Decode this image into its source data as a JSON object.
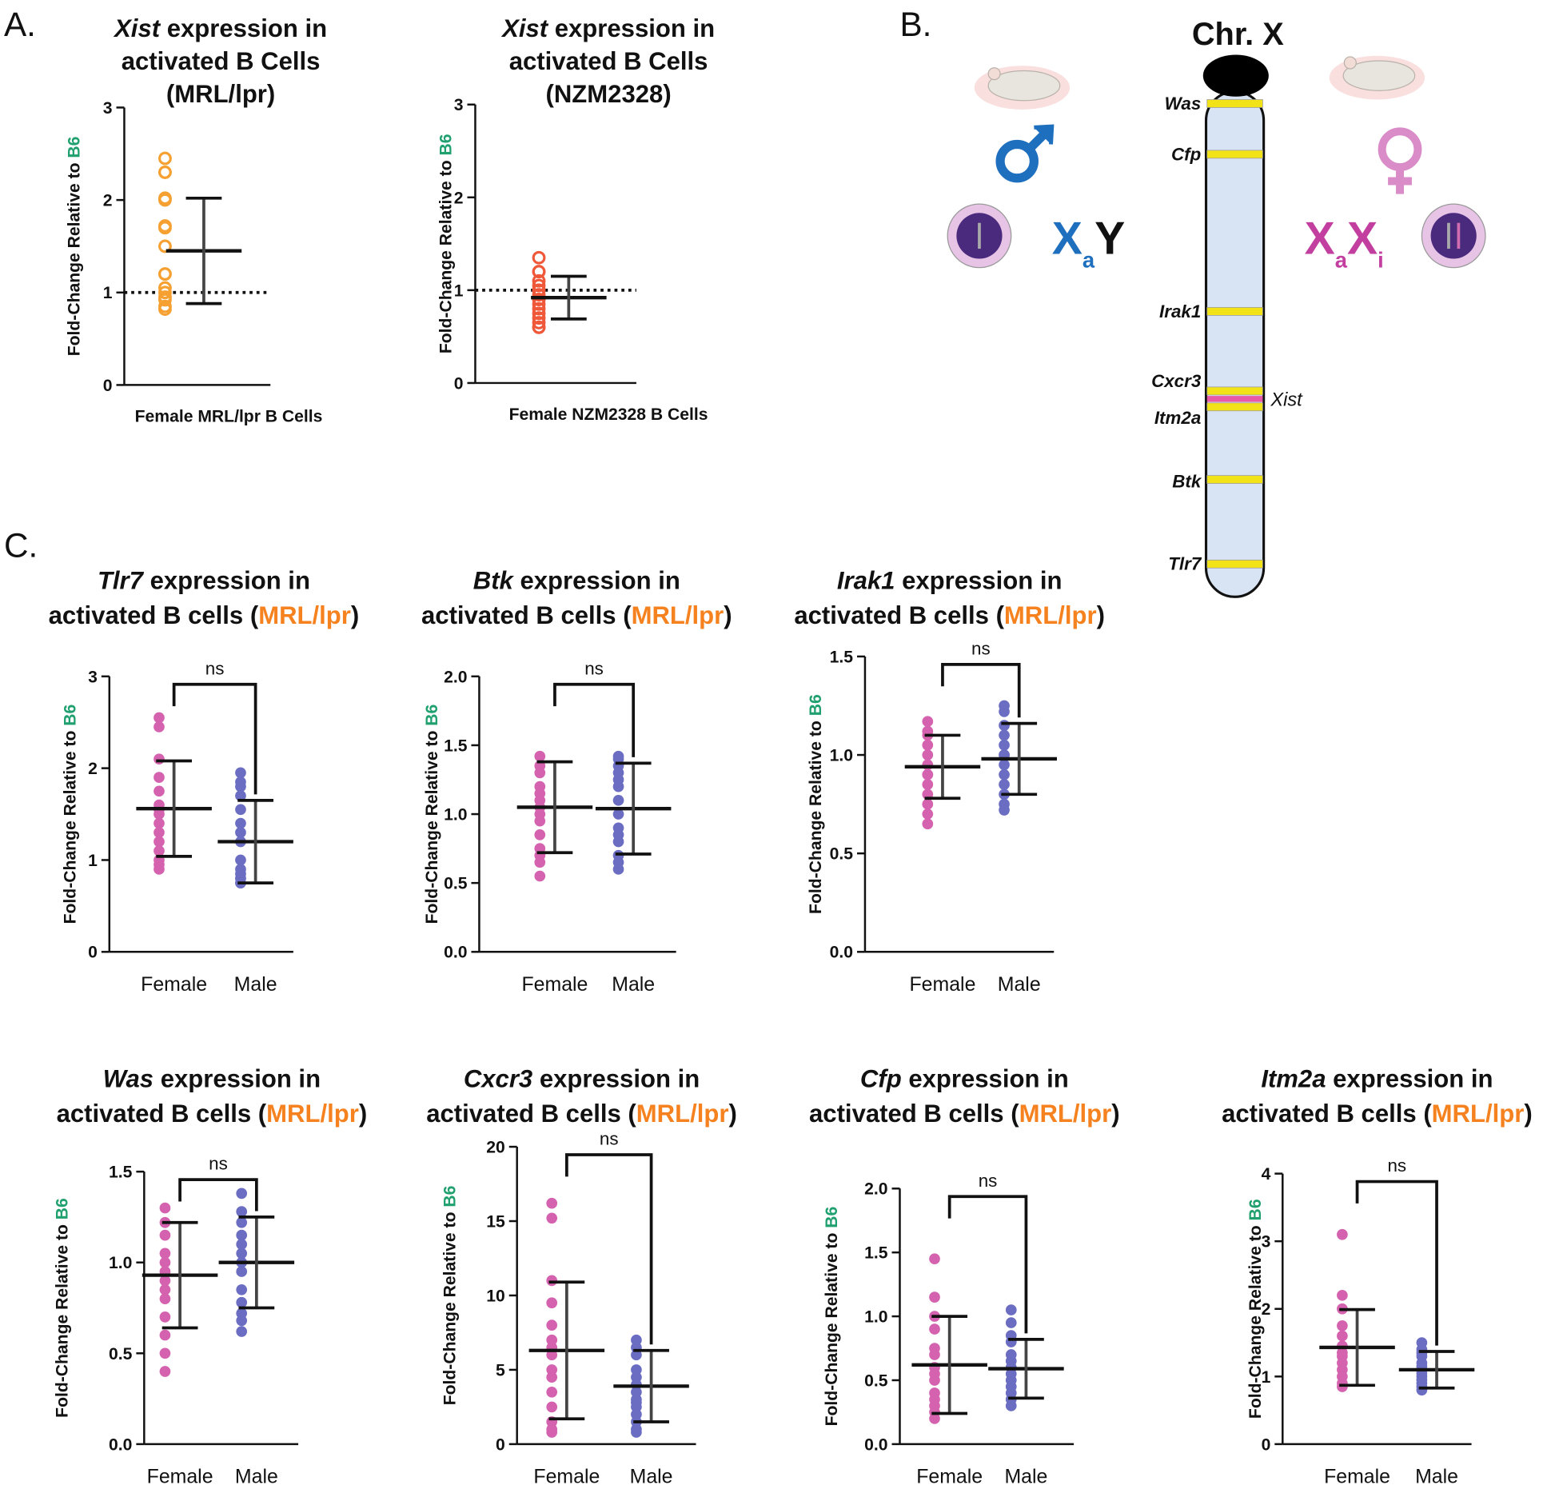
{
  "panels": [
    "A.",
    "B.",
    "C."
  ],
  "diagram": {
    "title": "Chr. X",
    "genes": [
      "Was",
      "Cfp",
      "Irak1",
      "Cxcr3",
      "Itm2a",
      "Btk",
      "Tlr7"
    ],
    "xist": "Xist",
    "male": {
      "x": "X",
      "sub": "a",
      "y": "Y"
    },
    "female": {
      "x1": "X",
      "sub1": "a",
      "x2": "X",
      "sub2": "i"
    }
  },
  "chart_data": [
    {
      "type": "dotplot",
      "title": {
        "gene": "Xist",
        "text": " expression in",
        "line2": "activated B Cells",
        "strain": "(MRL/lpr)"
      },
      "strain_color": "#f5821f",
      "ylabel": {
        "text": "Fold-Change Relative to ",
        "ref": "B6"
      },
      "marker": "open",
      "categories": [
        "Female MRL/lpr B Cells"
      ],
      "colors": [
        "#f5a030"
      ],
      "points": [
        [
          2.45,
          2.3,
          2.3,
          2.02,
          2.0,
          1.7,
          1.72,
          1.5,
          1.2,
          1.2,
          0.95,
          0.92,
          0.82,
          0.85,
          1.0,
          1.05
        ]
      ],
      "mean": [
        1.45
      ],
      "sd": [
        0.57
      ],
      "refline": 1,
      "ylim": [
        0,
        3
      ],
      "yticks": [
        0,
        1,
        2,
        3
      ]
    },
    {
      "type": "dotplot",
      "title": {
        "gene": "Xist",
        "text": " expression in",
        "line2": "activated B Cells",
        "strain": "(NZM2328)"
      },
      "strain_color": "#e8241c",
      "ylabel": {
        "text": "Fold-Change Relative to ",
        "ref": "B6"
      },
      "marker": "open",
      "categories": [
        "Female NZM2328 B Cells"
      ],
      "colors": [
        "#f0583a"
      ],
      "points": [
        [
          1.35,
          1.2,
          1.2,
          1.1,
          1.05,
          1.0,
          0.95,
          0.9,
          0.85,
          0.8,
          0.75,
          0.7,
          0.65,
          0.6,
          0.6,
          1.0,
          0.9
        ]
      ],
      "mean": [
        0.92
      ],
      "sd": [
        0.23
      ],
      "refline": 1,
      "ylim": [
        0,
        3
      ],
      "yticks": [
        0,
        1,
        2,
        3
      ]
    },
    {
      "type": "dotplot",
      "title": {
        "gene": "Tlr7",
        "text": " expression in",
        "line2": "activated B cells (",
        "strain": "MRL/lpr",
        "close": ")"
      },
      "strain_color": "#f5821f",
      "ylabel": {
        "text": "Fold-Change Relative to ",
        "ref": "B6"
      },
      "marker": "filled",
      "annotation": "ns",
      "categories": [
        "Female",
        "Male"
      ],
      "colors": [
        "#d462ae",
        "#6a6dc2"
      ],
      "points": [
        [
          2.55,
          2.45,
          2.1,
          1.9,
          1.75,
          1.6,
          1.55,
          1.5,
          1.4,
          1.2,
          1.1,
          1.0,
          0.95,
          0.9,
          1.3
        ],
        [
          1.95,
          1.85,
          1.8,
          1.7,
          1.55,
          1.4,
          1.3,
          1.2,
          1.0,
          0.9,
          0.85,
          0.8,
          0.8,
          0.75,
          0.75
        ]
      ],
      "mean": [
        1.56,
        1.2
      ],
      "sd": [
        0.52,
        0.45
      ],
      "ylim": [
        0,
        3
      ],
      "yticks": [
        0,
        1,
        2,
        3
      ]
    },
    {
      "type": "dotplot",
      "title": {
        "gene": "Btk",
        "text": " expression in",
        "line2": "activated B cells (",
        "strain": "MRL/lpr",
        "close": ")"
      },
      "strain_color": "#f5821f",
      "ylabel": {
        "text": "Fold-Change Relative to ",
        "ref": "B6"
      },
      "marker": "filled",
      "annotation": "ns",
      "categories": [
        "Female",
        "Male"
      ],
      "colors": [
        "#d462ae",
        "#6a6dc2"
      ],
      "points": [
        [
          1.42,
          1.35,
          1.3,
          1.2,
          1.1,
          1.05,
          1.0,
          0.95,
          0.85,
          0.75,
          0.7,
          0.65,
          0.55,
          1.15
        ],
        [
          1.42,
          1.4,
          1.35,
          1.3,
          1.2,
          1.1,
          1.0,
          0.9,
          0.8,
          0.7,
          0.65,
          0.6,
          1.25,
          0.85
        ]
      ],
      "mean": [
        1.05,
        1.04
      ],
      "sd": [
        0.33,
        0.33
      ],
      "ylim": [
        0,
        2
      ],
      "yticks": [
        {
          "value": 0,
          "label": "0.0"
        },
        0.5,
        {
          "value": 1,
          "label": "1.0"
        },
        1.5,
        {
          "value": 2,
          "label": "2.0"
        }
      ]
    },
    {
      "type": "dotplot",
      "title": {
        "gene": "Irak1",
        "text": " expression in",
        "line2": "activated B cells (",
        "strain": "MRL/lpr",
        "close": ")"
      },
      "strain_color": "#f5821f",
      "ylabel": {
        "text": "Fold-Change Relative to ",
        "ref": "B6"
      },
      "marker": "filled",
      "annotation": "ns",
      "categories": [
        "Female",
        "Male"
      ],
      "colors": [
        "#d462ae",
        "#6a6dc2"
      ],
      "points": [
        [
          1.17,
          1.12,
          1.1,
          1.05,
          1.0,
          0.95,
          0.9,
          0.85,
          0.8,
          0.75,
          0.7,
          0.65,
          0.9
        ],
        [
          1.25,
          1.22,
          1.15,
          1.1,
          1.05,
          1.0,
          0.95,
          0.9,
          0.85,
          0.8,
          0.75,
          0.72,
          1.0
        ]
      ],
      "mean": [
        0.94,
        0.98
      ],
      "sd": [
        0.16,
        0.18
      ],
      "ylim": [
        0,
        1.5
      ],
      "yticks": [
        {
          "value": 0,
          "label": "0.0"
        },
        0.5,
        {
          "value": 1,
          "label": "1.0"
        },
        1.5
      ]
    },
    {
      "type": "dotplot",
      "title": {
        "gene": "Was",
        "text": " expression in",
        "line2": "activated B cells (",
        "strain": "MRL/lpr",
        "close": ")"
      },
      "strain_color": "#f5821f",
      "ylabel": {
        "text": "Fold-Change Relative to ",
        "ref": "B6"
      },
      "marker": "filled",
      "annotation": "ns",
      "categories": [
        "Female",
        "Male"
      ],
      "colors": [
        "#d462ae",
        "#6a6dc2"
      ],
      "points": [
        [
          1.3,
          1.22,
          1.15,
          1.05,
          0.95,
          0.9,
          0.85,
          0.8,
          0.7,
          0.6,
          0.5,
          0.4,
          1.0
        ],
        [
          1.38,
          1.28,
          1.22,
          1.15,
          1.1,
          1.0,
          0.95,
          0.85,
          0.78,
          0.72,
          0.68,
          0.62,
          1.05
        ]
      ],
      "mean": [
        0.93,
        1.0
      ],
      "sd": [
        0.29,
        0.25
      ],
      "ylim": [
        0,
        1.5
      ],
      "yticks": [
        {
          "value": 0,
          "label": "0.0"
        },
        0.5,
        {
          "value": 1,
          "label": "1.0"
        },
        1.5
      ]
    },
    {
      "type": "dotplot",
      "title": {
        "gene": "Cxcr3",
        "text": " expression in",
        "line2": "activated B cells (",
        "strain": "MRL/lpr",
        "close": ")"
      },
      "strain_color": "#f5821f",
      "ylabel": {
        "text": "Fold-Change Relative to ",
        "ref": "B6"
      },
      "marker": "filled",
      "annotation": "ns",
      "categories": [
        "Female",
        "Male"
      ],
      "colors": [
        "#d462ae",
        "#6a6dc2"
      ],
      "points": [
        [
          16.2,
          15.2,
          11,
          9.5,
          8,
          7,
          6,
          5,
          4.5,
          3.5,
          2.5,
          1.5,
          1,
          0.8,
          6.5
        ],
        [
          7,
          6.5,
          6,
          5,
          4.5,
          4,
          3.5,
          3,
          2.5,
          2,
          1.5,
          1,
          0.8,
          2.8
        ]
      ],
      "mean": [
        6.3,
        3.9
      ],
      "sd": [
        4.6,
        2.4
      ],
      "ylim": [
        0,
        20
      ],
      "yticks": [
        0,
        5,
        10,
        15,
        20
      ]
    },
    {
      "type": "dotplot",
      "title": {
        "gene": "Cfp",
        "text": " expression in",
        "line2": "activated B cells (",
        "strain": "MRL/lpr",
        "close": ")"
      },
      "strain_color": "#f5821f",
      "ylabel": {
        "text": "Fold-Change Relative to ",
        "ref": "B6"
      },
      "marker": "filled",
      "annotation": "ns",
      "categories": [
        "Female",
        "Male"
      ],
      "colors": [
        "#d462ae",
        "#6a6dc2"
      ],
      "points": [
        [
          1.45,
          1.15,
          1.0,
          0.9,
          0.75,
          0.7,
          0.6,
          0.5,
          0.4,
          0.35,
          0.3,
          0.25,
          0.2,
          0.55
        ],
        [
          1.05,
          0.95,
          0.85,
          0.8,
          0.7,
          0.65,
          0.6,
          0.55,
          0.5,
          0.45,
          0.4,
          0.35,
          0.3,
          0.6
        ]
      ],
      "mean": [
        0.62,
        0.59
      ],
      "sd": [
        0.38,
        0.23
      ],
      "ylim": [
        0,
        2
      ],
      "yticks": [
        {
          "value": 0,
          "label": "0.0"
        },
        0.5,
        {
          "value": 1,
          "label": "1.0"
        },
        1.5,
        {
          "value": 2,
          "label": "2.0"
        }
      ]
    },
    {
      "type": "dotplot",
      "title": {
        "gene": "Itm2a",
        "text": " expression in",
        "line2": "activated B cells (",
        "strain": "MRL/lpr",
        "close": ")"
      },
      "strain_color": "#f5821f",
      "ylabel": {
        "text": "Fold-Change Relative to ",
        "ref": "B6"
      },
      "marker": "filled",
      "annotation": "ns",
      "categories": [
        "Female",
        "Male"
      ],
      "colors": [
        "#d462ae",
        "#6a6dc2"
      ],
      "points": [
        [
          3.1,
          2.2,
          2.0,
          1.75,
          1.6,
          1.45,
          1.35,
          1.2,
          1.1,
          1.0,
          0.9,
          0.85,
          1.3
        ],
        [
          1.5,
          1.4,
          1.35,
          1.3,
          1.2,
          1.1,
          1.05,
          1.0,
          0.95,
          0.9,
          0.85,
          0.8,
          1.15
        ]
      ],
      "mean": [
        1.43,
        1.1
      ],
      "sd": [
        0.56,
        0.27
      ],
      "ylim": [
        0,
        4
      ],
      "yticks": [
        0,
        1,
        2,
        3,
        4
      ]
    }
  ]
}
